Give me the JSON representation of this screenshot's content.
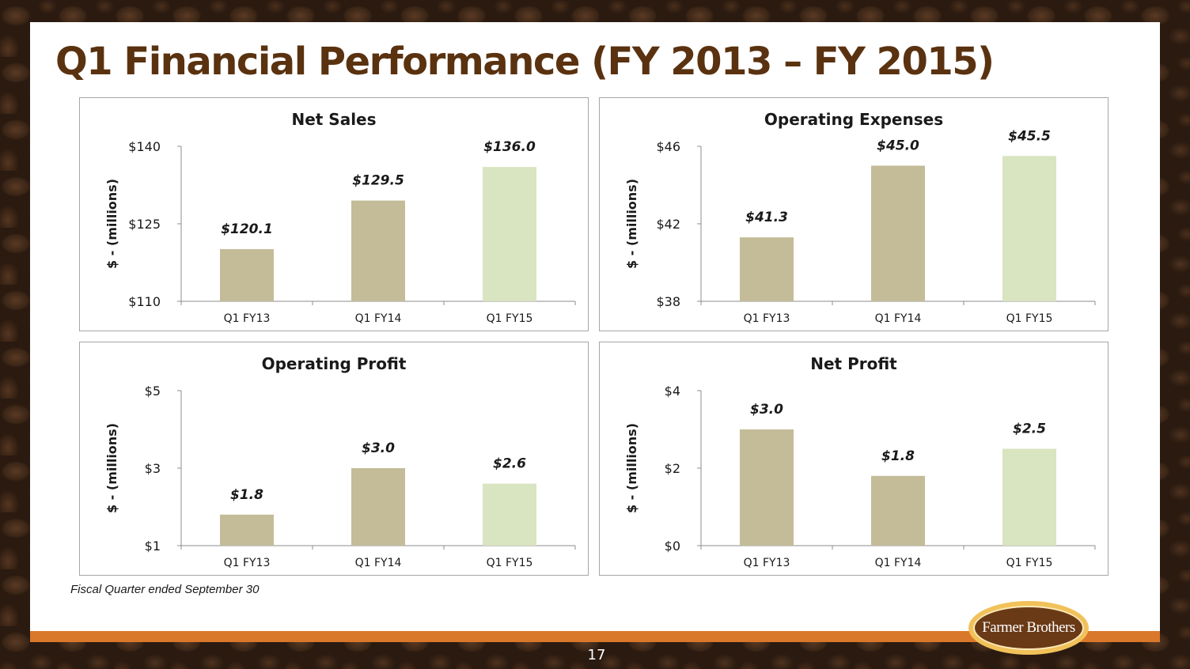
{
  "slide": {
    "title": "Q1 Financial Performance (FY 2013 – FY 2015)",
    "footnote": "Fiscal Quarter ended  September 30",
    "logo_text": "Farmer Brothers",
    "page_number": "17"
  },
  "colors": {
    "title": "#5a3210",
    "bar_prior_years": "#c4bc98",
    "bar_current_year": "#d9e4c0",
    "orange_band": "#d9772a",
    "logo_outer": "#f1c15a",
    "logo_inner": "#6a3a16"
  },
  "chart_data": [
    {
      "type": "bar",
      "title": "Net Sales",
      "ylabel": "$ - (millions)",
      "categories": [
        "Q1 FY13",
        "Q1 FY14",
        "Q1 FY15"
      ],
      "values": [
        120.1,
        129.5,
        136.0
      ],
      "data_labels": [
        "$120.1",
        "$129.5",
        "$136.0"
      ],
      "ylim": [
        110,
        140
      ],
      "yticks": [
        110,
        125,
        140
      ],
      "ytick_labels": [
        "$110",
        "$125",
        "$140"
      ],
      "grid": false
    },
    {
      "type": "bar",
      "title": "Operating Expenses",
      "ylabel": "$ - (millions)",
      "categories": [
        "Q1 FY13",
        "Q1 FY14",
        "Q1 FY15"
      ],
      "values": [
        41.3,
        45.0,
        45.5
      ],
      "data_labels": [
        "$41.3",
        "$45.0",
        "$45.5"
      ],
      "ylim": [
        38,
        46
      ],
      "yticks": [
        38,
        42,
        46
      ],
      "ytick_labels": [
        "$38",
        "$42",
        "$46"
      ],
      "grid": false
    },
    {
      "type": "bar",
      "title": "Operating Profit",
      "ylabel": "$ - (millions)",
      "categories": [
        "Q1 FY13",
        "Q1 FY14",
        "Q1 FY15"
      ],
      "values": [
        1.8,
        3.0,
        2.6
      ],
      "data_labels": [
        "$1.8",
        "$3.0",
        "$2.6"
      ],
      "ylim": [
        1,
        5
      ],
      "yticks": [
        1,
        3,
        5
      ],
      "ytick_labels": [
        "$1",
        "$3",
        "$5"
      ],
      "grid": false
    },
    {
      "type": "bar",
      "title": "Net Profit",
      "ylabel": "$ - (millions)",
      "categories": [
        "Q1 FY13",
        "Q1 FY14",
        "Q1 FY15"
      ],
      "values": [
        3.0,
        1.8,
        2.5
      ],
      "data_labels": [
        "$3.0",
        "$1.8",
        "$2.5"
      ],
      "ylim": [
        0,
        4
      ],
      "yticks": [
        0,
        2,
        4
      ],
      "ytick_labels": [
        "$0",
        "$2",
        "$4"
      ],
      "grid": false
    }
  ]
}
